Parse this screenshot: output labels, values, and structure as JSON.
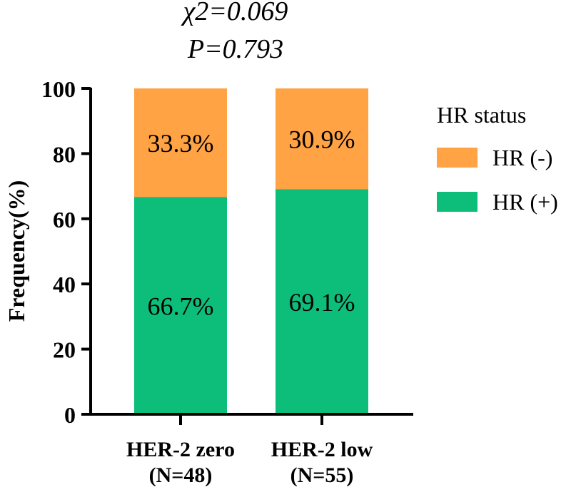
{
  "stats": {
    "chi_line": "χ2=0.069",
    "p_line": "P=0.793"
  },
  "chart_data": {
    "type": "bar",
    "stacked": true,
    "categories": [
      {
        "line1": "HER-2 zero",
        "line2": "(N=48)"
      },
      {
        "line1": "HER-2 low",
        "line2": "(N=55)"
      }
    ],
    "series": [
      {
        "name": "HR (+)",
        "color": "#0dbe7a",
        "values": [
          66.7,
          69.1
        ],
        "labels": [
          "66.7%",
          "69.1%"
        ]
      },
      {
        "name": "HR (-)",
        "color": "#ffa345",
        "values": [
          33.3,
          30.9
        ],
        "labels": [
          "33.3%",
          "30.9%"
        ]
      }
    ],
    "ylabel": "Frequency(%)",
    "xlabel": "",
    "ylim": [
      0,
      100
    ],
    "yticks": [
      "0",
      "20",
      "40",
      "60",
      "80",
      "100"
    ],
    "legend": {
      "title": "HR status",
      "position": "right"
    }
  }
}
